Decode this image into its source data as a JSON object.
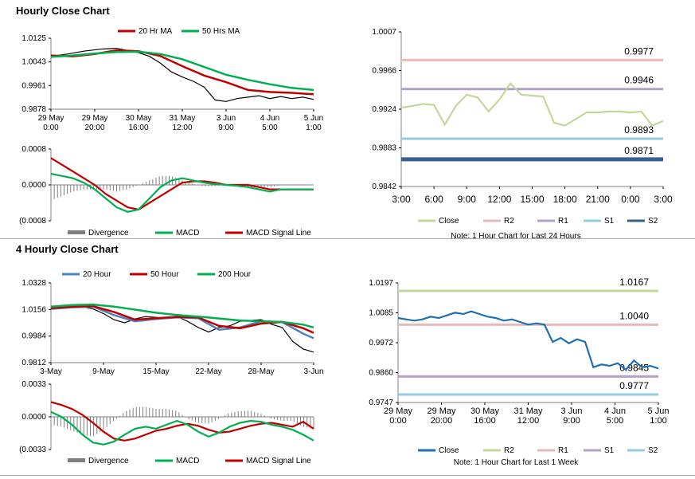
{
  "sections": {
    "hourly_title": "Hourly Close Chart",
    "four_hourly_title": "4 Hourly Close Chart"
  },
  "colors": {
    "red": "#c00000",
    "green": "#00b050",
    "blue": "#4f81bd",
    "close_green": "#c4d79b",
    "r2_pink": "#e6b9b8",
    "r1_purple": "#b3a2c7",
    "s1_cyan": "#93cddd",
    "s2_blue": "#376092",
    "close_blue": "#1f6fb2",
    "hist_gray": "#7f7f7f"
  },
  "chart_data": [
    {
      "id": "hourly_price",
      "type": "line",
      "title": "",
      "legend": [
        "20 Hr MA",
        "50 Hrs MA"
      ],
      "legend_placement": "top",
      "y_ticks": [
        "1.0125",
        "1.0043",
        "0.9961",
        "0.9878"
      ],
      "ylim": [
        0.9878,
        1.0125
      ],
      "x_ticks": [
        "29 May\n0:00",
        "29 May\n20:00",
        "30 May\n16:00",
        "31 May\n12:00",
        "3 Jun\n9:00",
        "4 Jun\n5:00",
        "5 Jun\n1:00"
      ],
      "x_range": [
        0,
        96
      ],
      "series": [
        {
          "name": "20 Hr MA",
          "x": [
            0,
            8,
            16,
            24,
            32,
            40,
            48,
            56,
            64,
            72,
            80,
            88,
            96
          ],
          "values": [
            1.0065,
            1.0062,
            1.007,
            1.0083,
            1.008,
            1.0063,
            1.0028,
            0.9995,
            0.9972,
            0.9945,
            0.9938,
            0.9935,
            0.993
          ]
        },
        {
          "name": "50 Hrs MA",
          "x": [
            0,
            8,
            16,
            24,
            32,
            40,
            48,
            56,
            64,
            72,
            80,
            88,
            96
          ],
          "values": [
            1.006,
            1.0065,
            1.0072,
            1.0077,
            1.0078,
            1.007,
            1.0052,
            1.0025,
            0.9998,
            0.998,
            0.9965,
            0.9952,
            0.9945
          ]
        },
        {
          "name": "Close",
          "x": [
            0,
            6,
            12,
            18,
            24,
            28,
            32,
            36,
            40,
            44,
            48,
            52,
            56,
            60,
            64,
            68,
            72,
            76,
            80,
            84,
            88,
            92,
            96
          ],
          "values": [
            1.0062,
            1.007,
            1.008,
            1.0087,
            1.009,
            1.0082,
            1.0075,
            1.0062,
            1.0038,
            1.0008,
            0.999,
            0.9975,
            0.9955,
            0.991,
            0.9905,
            0.9915,
            0.992,
            0.9925,
            0.9915,
            0.9922,
            0.9915,
            0.992,
            0.9912
          ]
        }
      ]
    },
    {
      "id": "hourly_macd",
      "type": "line",
      "title": "",
      "legend": [
        "Divergence",
        "MACD",
        "MACD Signal Line"
      ],
      "legend_placement": "bottom",
      "y_ticks": [
        "0.0008",
        "0.0000",
        "(0.0008"
      ],
      "ylim": [
        -0.0008,
        0.0008
      ],
      "x_range": [
        0,
        96
      ],
      "series": [
        {
          "name": "MACD",
          "x": [
            0,
            4,
            8,
            12,
            16,
            20,
            24,
            28,
            32,
            36,
            40,
            44,
            48,
            52,
            56,
            60,
            64,
            68,
            72,
            76,
            80,
            84,
            88,
            92,
            96
          ],
          "values": [
            0.00025,
            0.0002,
            0.00015,
            5e-05,
            -0.0001,
            -0.0003,
            -0.0005,
            -0.0006,
            -0.00055,
            -0.0003,
            -5e-05,
            0.0001,
            0.00015,
            0.0001,
            5e-05,
            2e-05,
            0.0,
            -2e-05,
            -5e-05,
            -0.0001,
            -0.00015,
            -0.0001,
            -0.0001,
            -0.0001,
            -0.0001
          ]
        },
        {
          "name": "MACD Signal Line",
          "x": [
            0,
            4,
            8,
            12,
            16,
            20,
            24,
            28,
            32,
            36,
            40,
            44,
            48,
            52,
            56,
            60,
            64,
            68,
            72,
            76,
            80,
            84,
            88,
            92,
            96
          ],
          "values": [
            0.0006,
            0.00045,
            0.0003,
            0.00015,
            0.0,
            -0.0002,
            -0.00035,
            -0.0005,
            -0.00055,
            -0.0004,
            -0.00025,
            -0.0001,
            5e-05,
            8e-05,
            8e-05,
            5e-05,
            0.0,
            0.0,
            0.0,
            -5e-05,
            -0.0001,
            -0.0001,
            -0.0001,
            -0.0001,
            -0.0001
          ]
        },
        {
          "name": "Divergence",
          "x": [
            0,
            4,
            8,
            12,
            16,
            20,
            24,
            28,
            32,
            36,
            40,
            44,
            48,
            52,
            56,
            60,
            64,
            68,
            72,
            76,
            80,
            84,
            88,
            92,
            96
          ],
          "values": [
            -0.00035,
            -0.00025,
            -0.00015,
            -0.0001,
            -0.0001,
            -0.0001,
            -0.00015,
            -0.0001,
            0.0,
            0.0001,
            0.0002,
            0.0002,
            0.0001,
            2e-05,
            -3e-05,
            -3e-05,
            0.0,
            -2e-05,
            -5e-05,
            -5e-05,
            -5e-05,
            0.0,
            0.0,
            0.0,
            0.0
          ]
        }
      ]
    },
    {
      "id": "hourly_levels",
      "type": "line",
      "title": "",
      "legend": [
        "Close",
        "R2",
        "R1",
        "S1",
        "S2"
      ],
      "legend_placement": "bottom",
      "note": "Note: 1 Hour Chart for Last 24 Hours",
      "y_ticks": [
        "1.0007",
        "0.9966",
        "0.9924",
        "0.9883",
        "0.9842"
      ],
      "ylim": [
        0.9842,
        1.0007
      ],
      "x_ticks": [
        "3:00",
        "6:00",
        "9:00",
        "12:00",
        "15:00",
        "18:00",
        "21:00",
        "0:00",
        "3:00"
      ],
      "x_range": [
        0,
        24
      ],
      "levels": [
        {
          "name": "R2",
          "value": 0.9977,
          "label": "0.9977"
        },
        {
          "name": "R1",
          "value": 0.9946,
          "label": "0.9946"
        },
        {
          "name": "S1",
          "value": 0.9893,
          "label": "0.9893"
        },
        {
          "name": "S2",
          "value": 0.9871,
          "label": "0.9871"
        }
      ],
      "series": [
        {
          "name": "Close",
          "x": [
            0,
            1,
            2,
            3,
            4,
            5,
            6,
            7,
            8,
            9,
            10,
            11,
            12,
            13,
            14,
            15,
            16,
            17,
            18,
            19,
            20,
            21,
            22,
            23,
            24
          ],
          "values": [
            0.9926,
            0.9928,
            0.993,
            0.9929,
            0.9908,
            0.9928,
            0.994,
            0.9937,
            0.9922,
            0.9935,
            0.9952,
            0.994,
            0.9939,
            0.9938,
            0.991,
            0.9907,
            0.9914,
            0.9921,
            0.9921,
            0.9922,
            0.9922,
            0.9921,
            0.9922,
            0.9907,
            0.9912
          ]
        }
      ]
    },
    {
      "id": "four_hourly_price",
      "type": "line",
      "title": "",
      "legend": [
        "20 Hour",
        "50 Hour",
        "200 Hour"
      ],
      "legend_placement": "top",
      "y_ticks": [
        "1.0328",
        "1.0156",
        "0.9984",
        "0.9812"
      ],
      "ylim": [
        0.9812,
        1.0328
      ],
      "x_ticks": [
        "3-May",
        "9-May",
        "15-May",
        "22-May",
        "28-May",
        "3-Jun"
      ],
      "x_range": [
        0,
        25
      ],
      "series": [
        {
          "name": "20 Hour",
          "x": [
            0,
            2,
            4,
            6,
            8,
            10,
            12,
            14,
            16,
            18,
            20,
            22,
            24,
            25
          ],
          "values": [
            1.016,
            1.017,
            1.0175,
            1.012,
            1.008,
            1.0095,
            1.0105,
            1.01,
            1.0025,
            1.004,
            1.008,
            1.0075,
            1.0,
            0.997
          ]
        },
        {
          "name": "50 Hour",
          "x": [
            0,
            2,
            4,
            6,
            8,
            10,
            12,
            14,
            16,
            18,
            20,
            22,
            24,
            25
          ],
          "values": [
            1.0165,
            1.0175,
            1.0178,
            1.014,
            1.009,
            1.01,
            1.0108,
            1.0105,
            1.005,
            1.0035,
            1.0065,
            1.0075,
            1.0035,
            1.0005
          ]
        },
        {
          "name": "200 Hour",
          "x": [
            0,
            2,
            4,
            6,
            8,
            10,
            12,
            14,
            16,
            18,
            20,
            22,
            24,
            25
          ],
          "values": [
            1.0175,
            1.0185,
            1.0188,
            1.0175,
            1.0155,
            1.0135,
            1.012,
            1.011,
            1.0098,
            1.0085,
            1.008,
            1.0075,
            1.0058,
            1.004
          ]
        },
        {
          "name": "Close",
          "x": [
            0,
            1,
            2,
            3,
            4,
            5,
            6,
            7,
            8,
            9,
            10,
            11,
            12,
            13,
            14,
            15,
            16,
            17,
            18,
            19,
            20,
            21,
            22,
            23,
            24,
            25
          ],
          "values": [
            1.0165,
            1.017,
            1.018,
            1.0175,
            1.016,
            1.013,
            1.009,
            1.007,
            1.0095,
            1.011,
            1.0105,
            1.01,
            1.011,
            1.008,
            1.004,
            1.001,
            1.004,
            1.005,
            1.008,
            1.0085,
            1.009,
            1.006,
            1.004,
            0.995,
            0.99,
            0.988
          ]
        }
      ]
    },
    {
      "id": "four_hourly_macd",
      "type": "line",
      "title": "",
      "legend": [
        "Divergence",
        "MACD",
        "MACD Signal Line"
      ],
      "legend_placement": "bottom",
      "y_ticks": [
        "0.0033",
        "0.0000",
        "(0.0033"
      ],
      "ylim": [
        -0.0033,
        0.0033
      ],
      "x_range": [
        0,
        25
      ],
      "series": [
        {
          "name": "MACD",
          "x": [
            0,
            1,
            2,
            3,
            4,
            5,
            6,
            7,
            8,
            9,
            10,
            11,
            12,
            13,
            14,
            15,
            16,
            17,
            18,
            19,
            20,
            21,
            22,
            23,
            24,
            25
          ],
          "values": [
            0.0005,
            0.0,
            -0.0008,
            -0.0018,
            -0.0026,
            -0.0028,
            -0.0025,
            -0.0018,
            -0.0012,
            -0.001,
            -0.0012,
            -0.0008,
            -0.0004,
            -0.0008,
            -0.0015,
            -0.002,
            -0.0016,
            -0.001,
            -0.0006,
            -0.0004,
            -0.0005,
            -0.0008,
            -0.001,
            -0.0013,
            -0.0018,
            -0.0024
          ]
        },
        {
          "name": "MACD Signal Line",
          "x": [
            0,
            1,
            2,
            3,
            4,
            5,
            6,
            7,
            8,
            9,
            10,
            11,
            12,
            13,
            14,
            15,
            16,
            17,
            18,
            19,
            20,
            21,
            22,
            23,
            24,
            25
          ],
          "values": [
            0.0015,
            0.0012,
            0.0008,
            0.0002,
            -0.0006,
            -0.0015,
            -0.0022,
            -0.0024,
            -0.0022,
            -0.0018,
            -0.0014,
            -0.0012,
            -0.0009,
            -0.0007,
            -0.0009,
            -0.0013,
            -0.0016,
            -0.0015,
            -0.0012,
            -0.0009,
            -0.0007,
            -0.0006,
            -0.0008,
            -0.001,
            -0.0005,
            -0.0012
          ]
        },
        {
          "name": "Divergence",
          "x": [
            0,
            1,
            2,
            3,
            4,
            5,
            6,
            7,
            8,
            9,
            10,
            11,
            12,
            13,
            14,
            15,
            16,
            17,
            18,
            19,
            20,
            21,
            22,
            23,
            24,
            25
          ],
          "values": [
            -0.0008,
            -0.001,
            -0.0014,
            -0.0018,
            -0.002,
            -0.0013,
            -0.0004,
            0.0005,
            0.001,
            0.001,
            0.0008,
            0.0008,
            0.0006,
            -0.0002,
            -0.0006,
            -0.0007,
            -0.0002,
            0.0004,
            0.0006,
            0.0006,
            0.0003,
            -0.0002,
            -0.0004,
            -0.0004,
            -0.001,
            -0.0012
          ]
        }
      ]
    },
    {
      "id": "weekly_levels",
      "type": "line",
      "title": "",
      "legend": [
        "Close",
        "R2",
        "R1",
        "S1",
        "S2"
      ],
      "legend_placement": "bottom",
      "note": "Note: 1 Hour Chart for Last 1 Week",
      "y_ticks": [
        "1.0197",
        "1.0085",
        "0.9972",
        "0.9860",
        "0.9747"
      ],
      "ylim": [
        0.9747,
        1.0197
      ],
      "x_ticks": [
        "29 May\n0:00",
        "29 May\n20:00",
        "30 May\n16:00",
        "31 May\n12:00",
        "3 Jun\n9:00",
        "4 Jun\n5:00",
        "5 Jun\n1:00"
      ],
      "x_range": [
        0,
        96
      ],
      "levels": [
        {
          "name": "R2",
          "value": 1.0167,
          "label": "1.0167"
        },
        {
          "name": "R1",
          "value": 1.004,
          "label": "1.0040"
        },
        {
          "name": "S1",
          "value": 0.9845,
          "label": "0.9845"
        },
        {
          "name": "S2",
          "value": 0.9777,
          "label": "0.9777"
        }
      ],
      "series": [
        {
          "name": "Close",
          "x": [
            0,
            3,
            6,
            9,
            12,
            15,
            18,
            21,
            24,
            27,
            30,
            33,
            36,
            39,
            42,
            45,
            48,
            51,
            54,
            57,
            60,
            63,
            66,
            69,
            72,
            75,
            78,
            81,
            84,
            87,
            90,
            93,
            96
          ],
          "values": [
            1.0065,
            1.006,
            1.0055,
            1.006,
            1.007,
            1.0065,
            1.0075,
            1.0085,
            1.008,
            1.009,
            1.008,
            1.007,
            1.0065,
            1.0055,
            1.006,
            1.005,
            1.004,
            1.0045,
            1.004,
            0.9975,
            0.999,
            0.997,
            0.9985,
            0.9975,
            0.988,
            0.989,
            0.9885,
            0.9895,
            0.987,
            0.9905,
            0.988,
            0.9885,
            0.9875
          ]
        }
      ]
    }
  ]
}
